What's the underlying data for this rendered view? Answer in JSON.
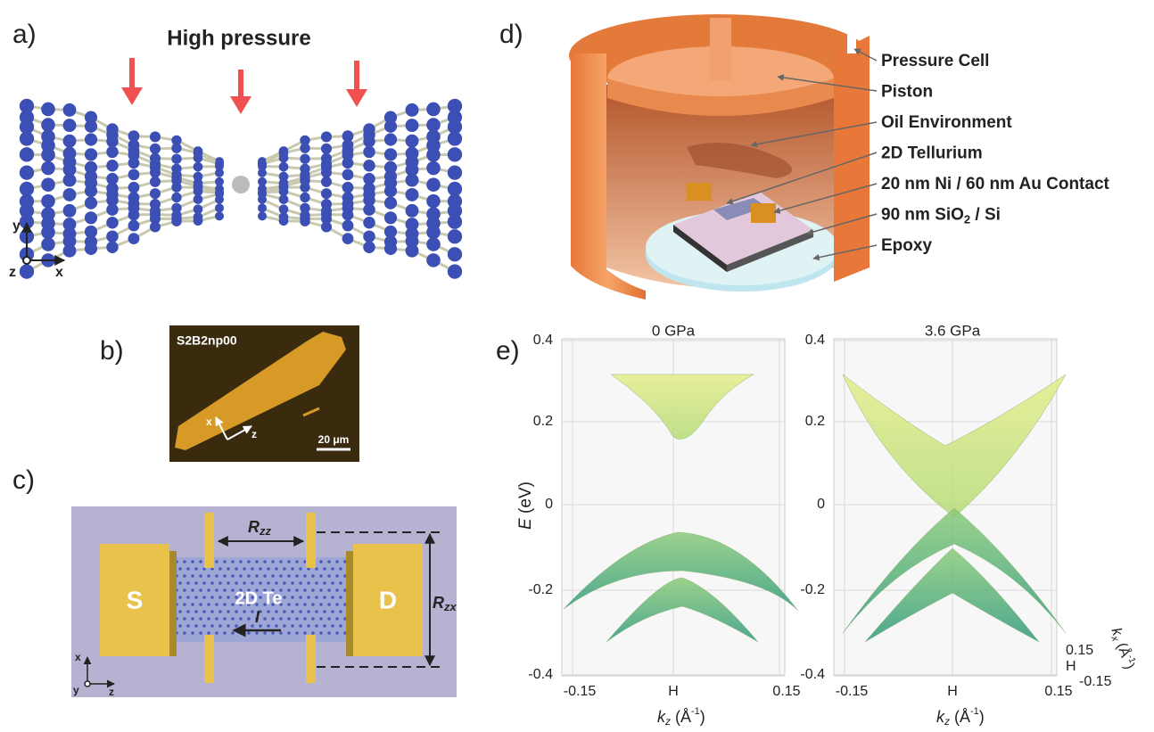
{
  "panels": {
    "a": {
      "label": "a)",
      "title": "High pressure",
      "axes": [
        "y",
        "z",
        "x"
      ]
    },
    "b": {
      "label": "b)",
      "sample": "S2B2np00",
      "axes": [
        "x",
        "z"
      ],
      "scale_bar": "20 μm"
    },
    "c": {
      "label": "c)",
      "source": "S",
      "drain": "D",
      "material": "2D Te",
      "current": "I",
      "r_zz": [
        "R",
        "zz"
      ],
      "r_zx": [
        "R",
        "zx"
      ],
      "axes": [
        "x",
        "y",
        "z"
      ]
    },
    "d": {
      "label": "d)",
      "callouts": [
        [
          "Pressure Cell"
        ],
        [
          "Piston"
        ],
        [
          "Oil Environment"
        ],
        [
          "2D Tellurium"
        ],
        [
          "20 nm Ni / 60 nm Au Contact"
        ],
        [
          "90 nm SiO",
          "2",
          " / Si"
        ],
        [
          "Epoxy"
        ]
      ]
    },
    "e": {
      "label": "e)",
      "y_label": [
        "E",
        " (eV)"
      ],
      "x_label": [
        "k",
        "z",
        " (Å",
        "-1",
        ")"
      ],
      "depth_label": [
        "k",
        "x",
        " (Å",
        "-1",
        ")"
      ],
      "yticks": [
        "0.4",
        "0.2",
        "0",
        "-0.2",
        "-0.4"
      ],
      "xticks": [
        "-0.15",
        "H",
        "0.15"
      ],
      "depth_ticks": [
        "0.15",
        "H",
        "-0.15"
      ],
      "plots": [
        {
          "title": "0 GPa"
        },
        {
          "title": "3.6 GPa"
        }
      ]
    }
  }
}
